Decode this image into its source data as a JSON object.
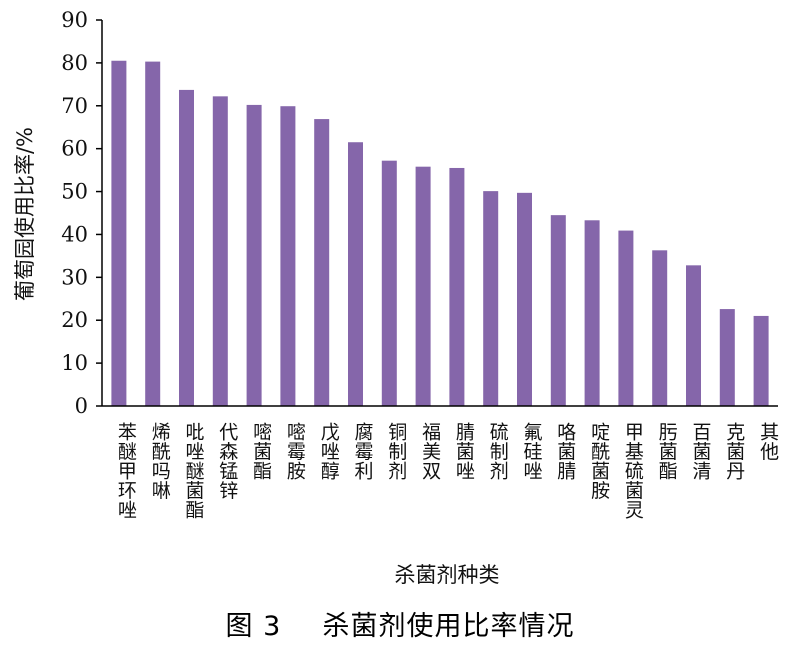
{
  "figure": {
    "caption_label": "图 3",
    "caption_text": "杀菌剂使用比率情况"
  },
  "colors": {
    "bar": "#8566aa",
    "axis": "#000000"
  },
  "chart_data": {
    "type": "bar",
    "xlabel": "杀菌剂种类",
    "ylabel": "葡萄园使用比率/%",
    "ylim": [
      0,
      90
    ],
    "yticks": [
      0,
      10,
      20,
      30,
      40,
      50,
      60,
      70,
      80,
      90
    ],
    "grid": false,
    "categories": [
      "苯醚甲环唑",
      "烯酰吗啉",
      "吡唑醚菌酯",
      "代森锰锌",
      "嘧菌酯",
      "嘧霉胺",
      "戊唑醇",
      "腐霉利",
      "铜制剂",
      "福美双",
      "腈菌唑",
      "硫制剂",
      "氟硅唑",
      "咯菌腈",
      "啶酰菌胺",
      "甲基硫菌灵",
      "肟菌酯",
      "百菌清",
      "克菌丹",
      "其他"
    ],
    "values": [
      80.5,
      80.3,
      73.7,
      72.2,
      70.2,
      69.9,
      66.9,
      61.5,
      57.2,
      55.8,
      55.5,
      50.1,
      49.7,
      44.5,
      43.3,
      40.9,
      36.3,
      32.8,
      22.6,
      21.0
    ]
  }
}
